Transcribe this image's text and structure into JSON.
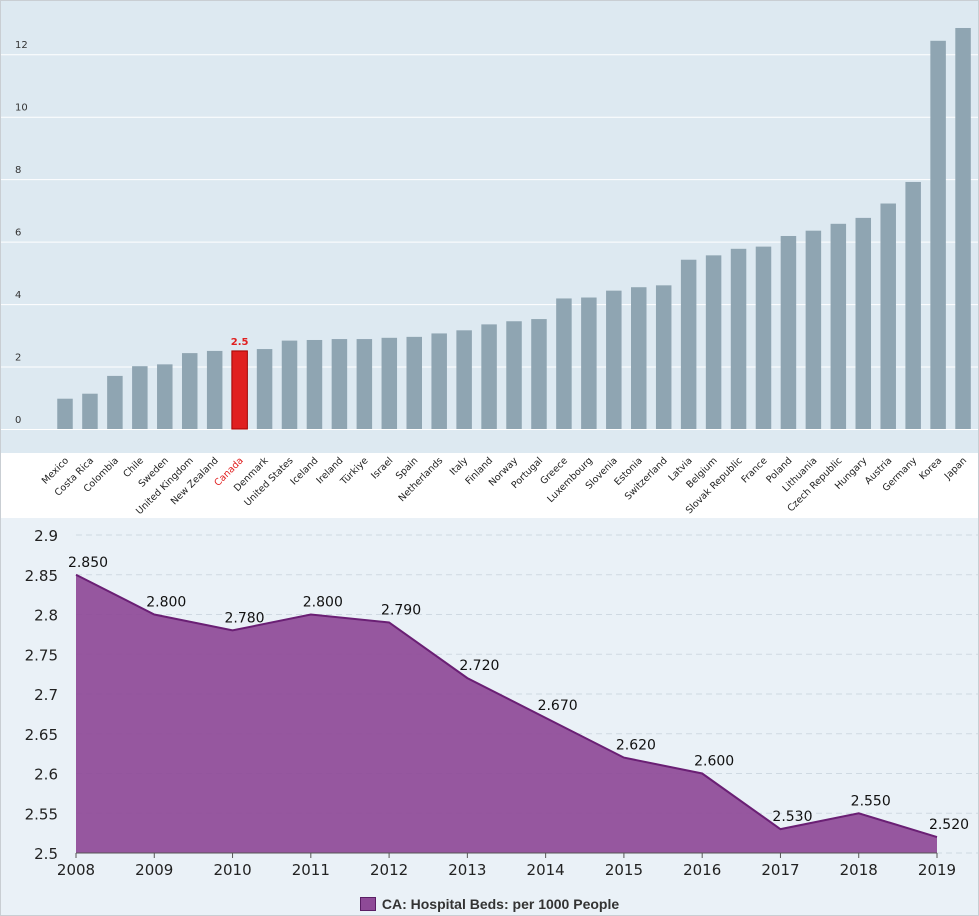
{
  "chart_data": [
    {
      "type": "bar",
      "categories": [
        "Mexico",
        "Costa Rica",
        "Colombia",
        "Chile",
        "Sweden",
        "United Kingdom",
        "New Zealand",
        "Canada",
        "Denmark",
        "United States",
        "Iceland",
        "Ireland",
        "Türkiye",
        "Israel",
        "Spain",
        "Netherlands",
        "Italy",
        "Finland",
        "Norway",
        "Portugal",
        "Greece",
        "Luxembourg",
        "Slovenia",
        "Estonia",
        "Switzerland",
        "Latvia",
        "Belgium",
        "Slovak Republic",
        "France",
        "Poland",
        "Lithuania",
        "Czech Republic",
        "Hungary",
        "Austria",
        "Germany",
        "Korea",
        "Japan"
      ],
      "values": [
        0.97,
        1.13,
        1.7,
        2.01,
        2.07,
        2.43,
        2.5,
        2.5,
        2.56,
        2.83,
        2.85,
        2.88,
        2.88,
        2.92,
        2.95,
        3.06,
        3.16,
        3.35,
        3.45,
        3.52,
        4.18,
        4.21,
        4.43,
        4.54,
        4.6,
        5.42,
        5.56,
        5.77,
        5.84,
        6.18,
        6.35,
        6.57,
        6.76,
        7.22,
        7.91,
        12.43,
        12.84
      ],
      "highlight": {
        "category": "Canada",
        "label": "2.5",
        "color": "#e02020"
      },
      "bar_color": "#8fa5b2",
      "ylim": [
        0,
        13
      ],
      "yticks": [
        "0",
        "2",
        "4",
        "6",
        "8",
        "10",
        "12"
      ],
      "grid": true
    },
    {
      "type": "area",
      "x": [
        "2008",
        "2009",
        "2010",
        "2011",
        "2012",
        "2013",
        "2014",
        "2015",
        "2016",
        "2017",
        "2018",
        "2019"
      ],
      "series": [
        {
          "name": "CA: Hospital Beds: per 1000 People",
          "values": [
            2.85,
            2.8,
            2.78,
            2.8,
            2.79,
            2.72,
            2.67,
            2.62,
            2.6,
            2.53,
            2.55,
            2.52
          ],
          "labels": [
            "2.850",
            "2.800",
            "2.780",
            "2.800",
            "2.790",
            "2.720",
            "2.670",
            "2.620",
            "2.600",
            "2.530",
            "2.550",
            "2.520"
          ]
        }
      ],
      "fill_color": "#8e4a97",
      "line_color": "#6a1f74",
      "ylim": [
        2.5,
        2.9
      ],
      "yticks": [
        "2.5",
        "2.55",
        "2.6",
        "2.65",
        "2.7",
        "2.75",
        "2.8",
        "2.85",
        "2.9"
      ],
      "legend_position": "bottom",
      "grid": true
    }
  ]
}
